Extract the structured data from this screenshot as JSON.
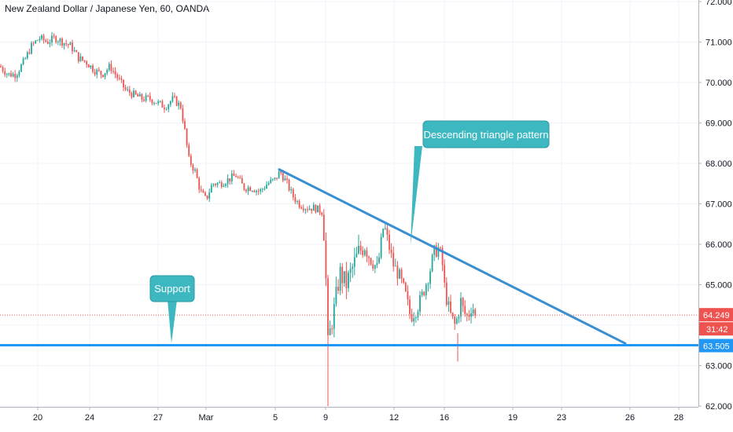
{
  "chart_data": {
    "type": "candlestick",
    "title": "New Zealand Dollar / Japanese Yen, 60, OANDA",
    "ylim": [
      62.0,
      72.0
    ],
    "y_ticks": [
      "62.000",
      "63.000",
      "64.000",
      "65.000",
      "66.000",
      "67.000",
      "68.000",
      "69.000",
      "70.000",
      "71.000",
      "72.000"
    ],
    "x_ticks": [
      "20",
      "24",
      "27",
      "Mar",
      "5",
      "9",
      "12",
      "16",
      "19",
      "23",
      "26",
      "28"
    ],
    "price_path": [
      [
        0,
        70.4
      ],
      [
        10,
        70.2
      ],
      [
        20,
        70.2
      ],
      [
        30,
        70.5
      ],
      [
        40,
        70.9
      ],
      [
        50,
        71.1
      ],
      [
        60,
        71.0
      ],
      [
        70,
        71.1
      ],
      [
        80,
        71.0
      ],
      [
        90,
        70.9
      ],
      [
        100,
        70.6
      ],
      [
        110,
        70.5
      ],
      [
        120,
        70.3
      ],
      [
        130,
        70.2
      ],
      [
        140,
        70.4
      ],
      [
        150,
        70.1
      ],
      [
        160,
        69.8
      ],
      [
        170,
        69.7
      ],
      [
        180,
        69.6
      ],
      [
        190,
        69.6
      ],
      [
        200,
        69.5
      ],
      [
        210,
        69.4
      ],
      [
        220,
        69.6
      ],
      [
        230,
        69.4
      ],
      [
        235,
        68.8
      ],
      [
        240,
        68.1
      ],
      [
        248,
        67.8
      ],
      [
        255,
        67.3
      ],
      [
        262,
        67.1
      ],
      [
        270,
        67.5
      ],
      [
        280,
        67.5
      ],
      [
        290,
        67.6
      ],
      [
        300,
        67.7
      ],
      [
        310,
        67.4
      ],
      [
        320,
        67.4
      ],
      [
        330,
        67.3
      ],
      [
        340,
        67.5
      ],
      [
        350,
        67.6
      ],
      [
        356,
        67.8
      ],
      [
        365,
        67.5
      ],
      [
        372,
        67.2
      ],
      [
        380,
        67.0
      ],
      [
        390,
        66.9
      ],
      [
        400,
        66.9
      ],
      [
        410,
        66.8
      ],
      [
        413,
        66.0
      ],
      [
        417,
        63.5
      ],
      [
        421,
        64.0
      ],
      [
        426,
        64.5
      ],
      [
        432,
        65.3
      ],
      [
        440,
        65.0
      ],
      [
        448,
        65.4
      ],
      [
        456,
        65.8
      ],
      [
        464,
        66.0
      ],
      [
        472,
        65.6
      ],
      [
        480,
        65.4
      ],
      [
        488,
        66.5
      ],
      [
        494,
        66.0
      ],
      [
        500,
        65.5
      ],
      [
        508,
        65.2
      ],
      [
        515,
        64.8
      ],
      [
        522,
        64.2
      ],
      [
        530,
        64.4
      ],
      [
        538,
        64.8
      ],
      [
        546,
        65.3
      ],
      [
        552,
        65.8
      ],
      [
        558,
        65.9
      ],
      [
        562,
        65.6
      ],
      [
        566,
        64.8
      ],
      [
        572,
        64.3
      ],
      [
        578,
        64.0
      ],
      [
        582,
        64.2
      ],
      [
        586,
        64.6
      ],
      [
        590,
        64.3
      ],
      [
        595,
        64.2
      ],
      [
        600,
        64.5
      ],
      [
        605,
        64.25
      ]
    ],
    "annotations": [
      {
        "type": "line",
        "label": "",
        "from": [
          355,
          67.85
        ],
        "to": [
          795,
          63.55
        ]
      },
      {
        "type": "hline",
        "label": "",
        "y": 63.505
      },
      {
        "type": "callout",
        "label": "Descending triangle pattern"
      },
      {
        "type": "callout",
        "label": "Support"
      }
    ],
    "price_labels": {
      "last": "64.249",
      "last_y": 64.249,
      "countdown": "31:42",
      "support": "63.505",
      "support_y": 63.505
    },
    "colors": {
      "up": "#26a69a",
      "down": "#ef5350",
      "line": "#2196f3",
      "callout": "#3db8c0",
      "support_tag": "#2196f3",
      "last_tag": "#ef5350"
    }
  }
}
